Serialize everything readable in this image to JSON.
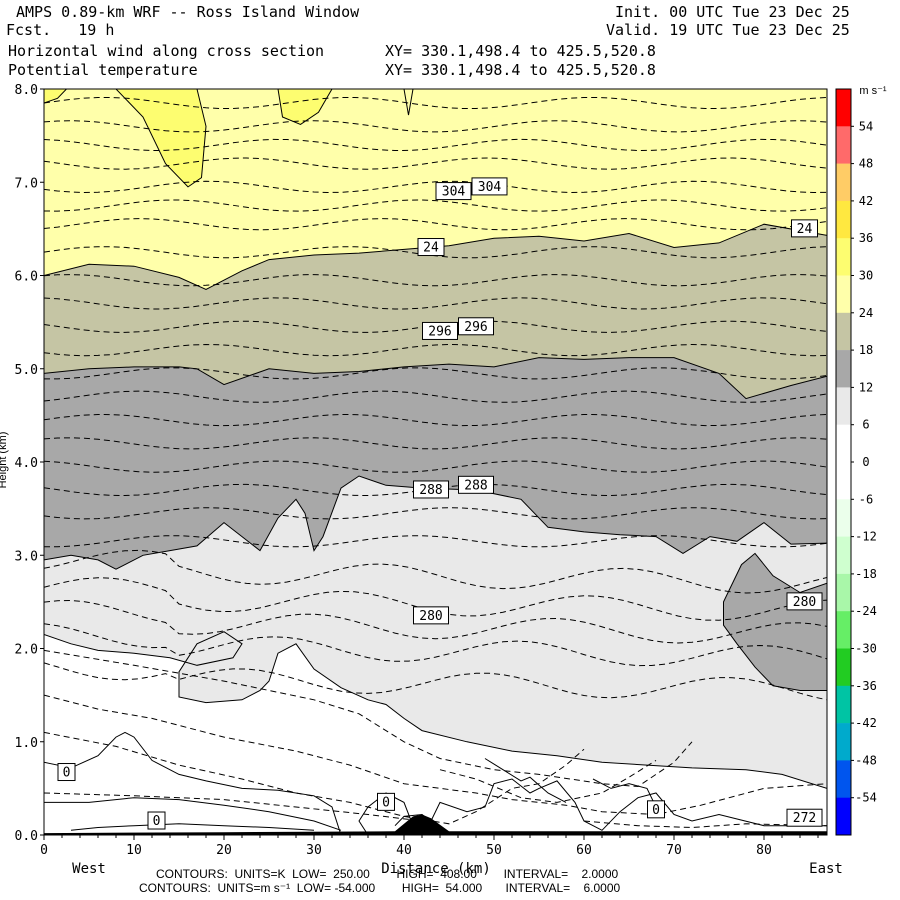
{
  "header": {
    "title": "AMPS 0.89-km WRF -- Ross Island Window",
    "forecast": "Fcst.   19 h",
    "init": "Init. 00 UTC Tue 23 Dec 25",
    "valid": "Valid. 19 UTC Tue 23 Dec 25",
    "field1": "Horizontal wind along cross section",
    "field2": "Potential temperature",
    "xy1": "XY= 330.1,498.4 to 425.5,520.8",
    "xy2": "XY= 330.1,498.4 to 425.5,520.8"
  },
  "footer": {
    "contours1": "CONTOURS:  UNITS=K  LOW=  250.00        HIGH=  408.00        INTERVAL=    2.0000",
    "contours2": "CONTOURS:  UNITS=m s⁻¹  LOW= -54.000        HIGH=  54.000       INTERVAL=    6.0000"
  },
  "chart_data": {
    "type": "heatmap",
    "title": "AMPS 0.89-km WRF -- Ross Island Window",
    "xlabel": "Distance (km)",
    "ylabel": "Height (km)",
    "x_left_label": "West",
    "x_right_label": "East",
    "xlim": [
      0,
      87
    ],
    "ylim": [
      0,
      8
    ],
    "x_ticks": [
      0,
      10,
      20,
      30,
      40,
      50,
      60,
      70,
      80
    ],
    "y_ticks": [
      0.0,
      1.0,
      2.0,
      3.0,
      4.0,
      5.0,
      6.0,
      7.0,
      8.0
    ],
    "colorbar": {
      "unit": "m s⁻¹",
      "labels": [
        54,
        48,
        42,
        36,
        30,
        24,
        18,
        12,
        6,
        0,
        -6,
        -12,
        -18,
        -24,
        -30,
        -36,
        -42,
        -48,
        -54
      ],
      "colors": [
        "#ff0000",
        "#ff6a6a",
        "#ffcc66",
        "#ffe840",
        "#fdfd70",
        "#ffffaa",
        "#c5c5a4",
        "#a8a8a8",
        "#e9e9e9",
        "#ffffff",
        "#ffffff",
        "#ebffeb",
        "#cfffcf",
        "#a9f7a9",
        "#66ee66",
        "#22cc22",
        "#00c4a4",
        "#00aacc",
        "#0055ee",
        "#0000ff"
      ]
    },
    "wind_fill_bands": [
      {
        "range": "24 to 30",
        "color": "#ffffaa"
      },
      {
        "range": "18 to 24",
        "color": "#c5c5a4"
      },
      {
        "range": "12 to 18",
        "color": "#a8a8a8"
      },
      {
        "range": "6 to 12",
        "color": "#e9e9e9"
      },
      {
        "range": "0 to 6",
        "color": "#ffffff"
      }
    ],
    "theta_contours_K": [
      272,
      280,
      288,
      296,
      304
    ],
    "labels_on_plot": [
      {
        "text": "304",
        "x": 45.5,
        "y": 6.9
      },
      {
        "text": "304",
        "x": 49.5,
        "y": 6.95
      },
      {
        "text": "24",
        "x": 43,
        "y": 6.3
      },
      {
        "text": "24",
        "x": 84.5,
        "y": 6.5
      },
      {
        "text": "296",
        "x": 44,
        "y": 5.4
      },
      {
        "text": "296",
        "x": 48,
        "y": 5.45
      },
      {
        "text": "288",
        "x": 43,
        "y": 3.7
      },
      {
        "text": "288",
        "x": 48,
        "y": 3.75
      },
      {
        "text": "280",
        "x": 43,
        "y": 2.35
      },
      {
        "text": "280",
        "x": 84.5,
        "y": 2.5
      },
      {
        "text": "0",
        "x": 2.5,
        "y": 0.67
      },
      {
        "text": "0",
        "x": 38,
        "y": 0.35
      },
      {
        "text": "0",
        "x": 12.5,
        "y": 0.15
      },
      {
        "text": "0",
        "x": 68,
        "y": 0.27
      },
      {
        "text": "272",
        "x": 84.5,
        "y": 0.18
      }
    ]
  }
}
